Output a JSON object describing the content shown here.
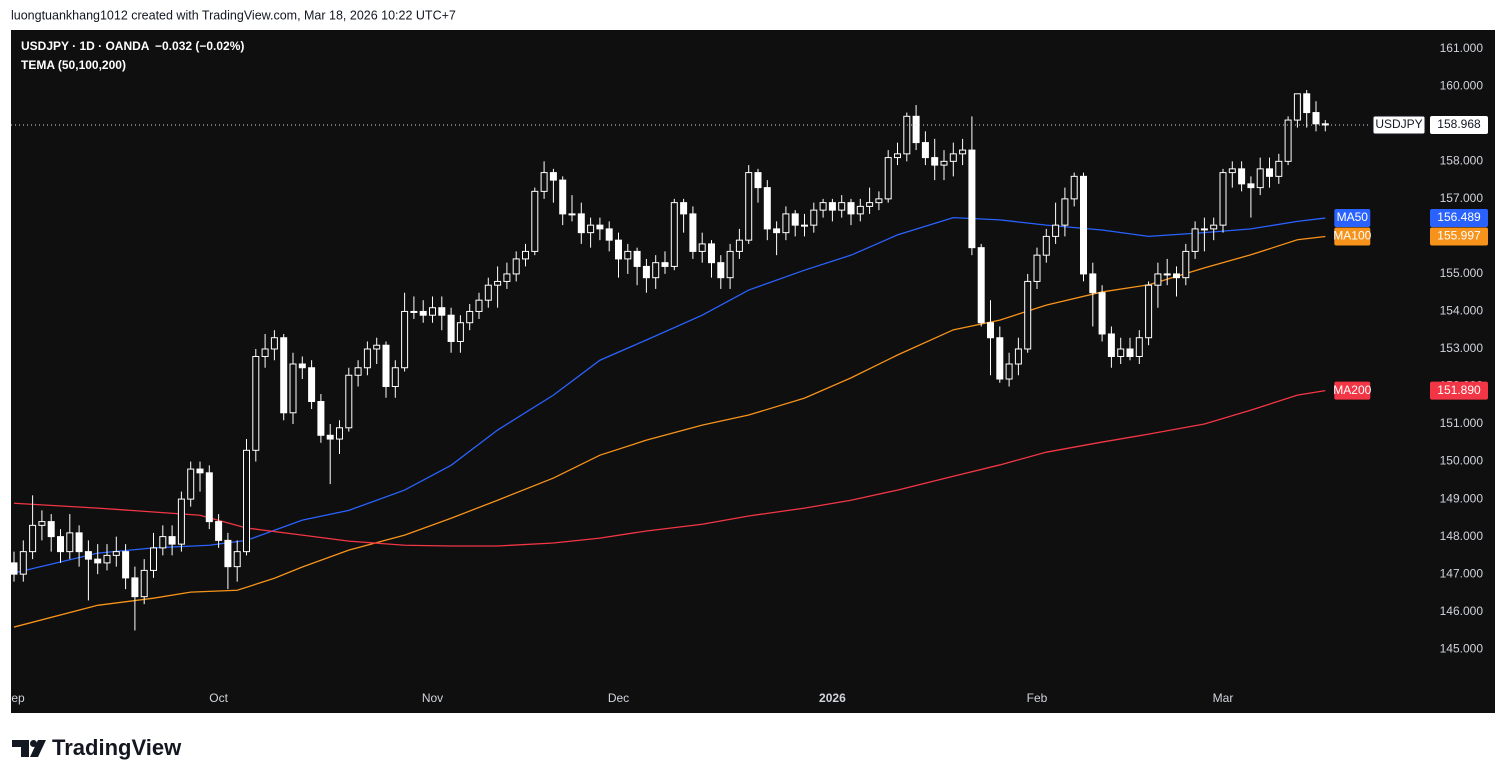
{
  "header": {
    "credit": "luongtuankhang1012 created with TradingView.com, Mar 18, 2026 10:22 UTC+7"
  },
  "footer": {
    "brand": "TradingView"
  },
  "chart_data": {
    "type": "candlestick",
    "legend": {
      "symbol": "USDJPY · 1D · OANDA",
      "change": "−0.032 (−0.02%)",
      "indicator": "TEMA (50,100,200)"
    },
    "symbol": "USDJPY",
    "last_price": 158.968,
    "ylim": [
      143.3,
      161.5
    ],
    "yticks": [
      {
        "value": 145,
        "label": "145.000"
      },
      {
        "value": 146,
        "label": "146.000"
      },
      {
        "value": 147,
        "label": "147.000"
      },
      {
        "value": 148,
        "label": "148.000"
      },
      {
        "value": 149,
        "label": "149.000"
      },
      {
        "value": 150,
        "label": "150.000"
      },
      {
        "value": 151,
        "label": "151.000"
      },
      {
        "value": 152,
        "label": "152.000"
      },
      {
        "value": 153,
        "label": "153.000"
      },
      {
        "value": 154,
        "label": "154.000"
      },
      {
        "value": 155,
        "label": "155.000"
      },
      {
        "value": 156,
        "label": "156.000"
      },
      {
        "value": 157,
        "label": "157.000"
      },
      {
        "value": 158,
        "label": "158.000"
      },
      {
        "value": 159,
        "label": "159.000"
      },
      {
        "value": 160,
        "label": "160.000"
      },
      {
        "value": 161,
        "label": "161.000"
      }
    ],
    "grid": false,
    "up_color": "#0f0f0f",
    "down_color": "#ffffff",
    "border_color": "#ffffff",
    "categories": [
      "Sep",
      null,
      null,
      null,
      null,
      null,
      null,
      null,
      null,
      null,
      null,
      null,
      null,
      null,
      null,
      null,
      null,
      null,
      null,
      null,
      null,
      null,
      "Oct",
      null,
      null,
      null,
      null,
      null,
      null,
      null,
      null,
      null,
      null,
      null,
      null,
      null,
      null,
      null,
      null,
      null,
      null,
      null,
      null,
      null,
      null,
      "Nov",
      null,
      null,
      null,
      null,
      null,
      null,
      null,
      null,
      null,
      null,
      null,
      null,
      null,
      null,
      null,
      null,
      null,
      null,
      null,
      "Dec",
      null,
      null,
      null,
      null,
      null,
      null,
      null,
      null,
      null,
      null,
      null,
      null,
      null,
      null,
      null,
      null,
      null,
      null,
      null,
      null,
      null,
      null,
      "2026",
      null,
      null,
      null,
      null,
      null,
      null,
      null,
      null,
      null,
      null,
      null,
      null,
      null,
      null,
      null,
      null,
      null,
      null,
      null,
      null,
      null,
      "Feb",
      null,
      null,
      null,
      null,
      null,
      null,
      null,
      null,
      null,
      null,
      null,
      null,
      null,
      null,
      null,
      null,
      null,
      null,
      null,
      "Mar",
      null,
      null,
      null,
      null,
      null,
      null,
      null,
      null,
      null,
      null,
      null
    ],
    "ohlc": [
      [
        147.3,
        147.6,
        146.8,
        147.0
      ],
      [
        147.0,
        147.9,
        146.8,
        147.6
      ],
      [
        147.6,
        149.1,
        147.4,
        148.3
      ],
      [
        148.3,
        148.7,
        147.9,
        148.4
      ],
      [
        148.4,
        148.6,
        147.6,
        148.0
      ],
      [
        148.0,
        148.2,
        147.3,
        147.6
      ],
      [
        147.6,
        148.6,
        147.4,
        148.1
      ],
      [
        148.1,
        148.3,
        147.2,
        147.6
      ],
      [
        147.6,
        147.9,
        146.3,
        147.4
      ],
      [
        147.4,
        147.8,
        147.0,
        147.3
      ],
      [
        147.3,
        147.8,
        147.1,
        147.5
      ],
      [
        147.5,
        148.0,
        147.2,
        147.6
      ],
      [
        147.6,
        147.8,
        146.6,
        146.9
      ],
      [
        146.9,
        147.2,
        145.5,
        146.4
      ],
      [
        146.4,
        147.4,
        146.2,
        147.1
      ],
      [
        147.1,
        148.1,
        146.9,
        147.7
      ],
      [
        147.7,
        148.3,
        147.5,
        148.0
      ],
      [
        148.0,
        148.3,
        147.5,
        147.8
      ],
      [
        147.8,
        149.2,
        147.6,
        149.0
      ],
      [
        149.0,
        150.0,
        148.8,
        149.8
      ],
      [
        149.8,
        150.0,
        149.2,
        149.7
      ],
      [
        149.7,
        149.9,
        148.2,
        148.4
      ],
      [
        148.4,
        148.6,
        147.7,
        147.9
      ],
      [
        147.9,
        148.1,
        146.6,
        147.2
      ],
      [
        147.2,
        147.9,
        146.8,
        147.6
      ],
      [
        147.6,
        150.6,
        147.5,
        150.3
      ],
      [
        150.3,
        153.0,
        150.0,
        152.8
      ],
      [
        152.8,
        153.4,
        152.5,
        153.0
      ],
      [
        153.0,
        153.5,
        152.7,
        153.3
      ],
      [
        153.3,
        153.4,
        151.1,
        151.3
      ],
      [
        151.3,
        152.9,
        151.0,
        152.6
      ],
      [
        152.6,
        152.8,
        152.2,
        152.5
      ],
      [
        152.5,
        152.7,
        151.4,
        151.6
      ],
      [
        151.6,
        151.8,
        150.5,
        150.7
      ],
      [
        150.7,
        151.0,
        149.4,
        150.6
      ],
      [
        150.6,
        151.1,
        150.2,
        150.9
      ],
      [
        150.9,
        152.5,
        150.8,
        152.3
      ],
      [
        152.3,
        152.7,
        152.0,
        152.5
      ],
      [
        152.5,
        153.2,
        152.3,
        153.0
      ],
      [
        153.0,
        153.3,
        152.6,
        153.1
      ],
      [
        153.1,
        153.2,
        151.7,
        152.0
      ],
      [
        152.0,
        152.7,
        151.7,
        152.5
      ],
      [
        152.5,
        154.5,
        152.4,
        154.0
      ],
      [
        154.0,
        154.4,
        153.8,
        154.0
      ],
      [
        154.0,
        154.3,
        153.7,
        153.9
      ],
      [
        153.9,
        154.4,
        153.7,
        154.1
      ],
      [
        154.1,
        154.4,
        153.5,
        153.9
      ],
      [
        153.9,
        154.1,
        152.9,
        153.2
      ],
      [
        153.2,
        153.9,
        152.9,
        153.7
      ],
      [
        153.7,
        154.2,
        153.5,
        154.0
      ],
      [
        154.0,
        154.5,
        153.8,
        154.3
      ],
      [
        154.3,
        154.9,
        154.1,
        154.7
      ],
      [
        154.7,
        155.2,
        154.1,
        154.8
      ],
      [
        154.8,
        155.3,
        154.6,
        155.0
      ],
      [
        155.0,
        155.6,
        154.8,
        155.4
      ],
      [
        155.4,
        155.8,
        155.2,
        155.6
      ],
      [
        155.6,
        157.3,
        155.5,
        157.2
      ],
      [
        157.2,
        158.0,
        157.0,
        157.7
      ],
      [
        157.7,
        157.8,
        156.9,
        157.5
      ],
      [
        157.5,
        157.6,
        156.3,
        156.6
      ],
      [
        156.6,
        157.1,
        156.4,
        156.6
      ],
      [
        156.6,
        156.9,
        155.8,
        156.1
      ],
      [
        156.1,
        156.5,
        155.7,
        156.3
      ],
      [
        156.3,
        156.5,
        155.9,
        156.2
      ],
      [
        156.2,
        156.4,
        155.6,
        155.9
      ],
      [
        155.9,
        156.1,
        154.9,
        155.4
      ],
      [
        155.4,
        155.8,
        155.0,
        155.6
      ],
      [
        155.6,
        155.7,
        154.7,
        155.2
      ],
      [
        155.2,
        155.4,
        154.5,
        154.9
      ],
      [
        154.9,
        155.5,
        154.6,
        155.3
      ],
      [
        155.3,
        155.6,
        155.0,
        155.2
      ],
      [
        155.2,
        157.0,
        155.1,
        156.9
      ],
      [
        156.9,
        157.0,
        156.1,
        156.6
      ],
      [
        156.6,
        156.8,
        155.4,
        155.6
      ],
      [
        155.6,
        156.1,
        155.3,
        155.8
      ],
      [
        155.8,
        155.9,
        154.9,
        155.3
      ],
      [
        155.3,
        155.5,
        154.6,
        154.9
      ],
      [
        154.9,
        155.8,
        154.6,
        155.6
      ],
      [
        155.6,
        156.2,
        155.4,
        155.9
      ],
      [
        155.9,
        157.9,
        155.8,
        157.7
      ],
      [
        157.7,
        157.8,
        156.9,
        157.3
      ],
      [
        157.3,
        157.5,
        155.9,
        156.2
      ],
      [
        156.2,
        156.4,
        155.5,
        156.1
      ],
      [
        156.1,
        156.8,
        155.9,
        156.6
      ],
      [
        156.6,
        156.7,
        156.0,
        156.3
      ],
      [
        156.3,
        156.6,
        156.0,
        156.3
      ],
      [
        156.3,
        156.9,
        156.1,
        156.7
      ],
      [
        156.7,
        157.0,
        156.5,
        156.9
      ],
      [
        156.9,
        157.0,
        156.4,
        156.7
      ],
      [
        156.7,
        157.1,
        156.5,
        156.9
      ],
      [
        156.9,
        157.0,
        156.3,
        156.6
      ],
      [
        156.6,
        157.0,
        156.4,
        156.8
      ],
      [
        156.8,
        157.3,
        156.6,
        156.9
      ],
      [
        156.9,
        157.2,
        156.7,
        157.0
      ],
      [
        157.0,
        158.3,
        156.9,
        158.1
      ],
      [
        158.1,
        158.5,
        157.9,
        158.2
      ],
      [
        158.2,
        159.3,
        158.0,
        159.2
      ],
      [
        159.2,
        159.5,
        158.3,
        158.5
      ],
      [
        158.5,
        158.8,
        157.9,
        158.1
      ],
      [
        158.1,
        158.6,
        157.5,
        157.9
      ],
      [
        157.9,
        158.3,
        157.5,
        158.0
      ],
      [
        158.0,
        158.5,
        157.6,
        158.2
      ],
      [
        158.2,
        158.6,
        157.9,
        158.3
      ],
      [
        158.3,
        159.2,
        155.5,
        155.7
      ],
      [
        155.7,
        155.8,
        153.6,
        153.7
      ],
      [
        153.7,
        154.3,
        152.3,
        153.3
      ],
      [
        153.3,
        153.6,
        152.1,
        152.2
      ],
      [
        152.2,
        152.9,
        152.0,
        152.6
      ],
      [
        152.6,
        153.3,
        152.3,
        153.0
      ],
      [
        153.0,
        155.0,
        152.9,
        154.8
      ],
      [
        154.8,
        155.7,
        154.6,
        155.5
      ],
      [
        155.5,
        156.2,
        155.3,
        156.0
      ],
      [
        156.0,
        156.9,
        155.8,
        156.3
      ],
      [
        156.3,
        157.3,
        156.0,
        157.0
      ],
      [
        157.0,
        157.7,
        156.8,
        157.6
      ],
      [
        157.6,
        157.7,
        154.8,
        155.0
      ],
      [
        155.0,
        155.3,
        153.6,
        154.5
      ],
      [
        154.5,
        154.7,
        153.2,
        153.4
      ],
      [
        153.4,
        153.6,
        152.5,
        152.8
      ],
      [
        152.8,
        153.3,
        152.6,
        153.0
      ],
      [
        153.0,
        153.3,
        152.7,
        152.8
      ],
      [
        152.8,
        153.5,
        152.6,
        153.3
      ],
      [
        153.3,
        154.8,
        153.1,
        154.7
      ],
      [
        154.7,
        155.3,
        154.1,
        155.0
      ],
      [
        155.0,
        155.4,
        154.7,
        155.0
      ],
      [
        155.0,
        155.2,
        154.4,
        154.9
      ],
      [
        154.9,
        155.8,
        154.7,
        155.6
      ],
      [
        155.6,
        156.4,
        155.4,
        156.2
      ],
      [
        156.2,
        156.5,
        155.6,
        156.2
      ],
      [
        156.2,
        156.5,
        155.9,
        156.3
      ],
      [
        156.3,
        157.8,
        156.1,
        157.7
      ],
      [
        157.7,
        158.0,
        157.3,
        157.8
      ],
      [
        157.8,
        158.0,
        157.2,
        157.4
      ],
      [
        157.4,
        157.6,
        156.5,
        157.3
      ],
      [
        157.3,
        158.1,
        157.1,
        157.8
      ],
      [
        157.8,
        158.1,
        157.3,
        157.6
      ],
      [
        157.6,
        158.2,
        157.4,
        158.0
      ],
      [
        158.0,
        159.2,
        157.9,
        159.1
      ],
      [
        159.1,
        159.8,
        158.9,
        159.8
      ],
      [
        159.8,
        159.9,
        158.9,
        159.3
      ],
      [
        159.3,
        159.6,
        158.8,
        159.0
      ],
      [
        159.0,
        159.1,
        158.8,
        158.968
      ]
    ],
    "series": [
      {
        "name": "MA50",
        "color": "#2962ff",
        "x": [
          0,
          9,
          15,
          21,
          25,
          31,
          36,
          42,
          47,
          52,
          58,
          63,
          68,
          74,
          79,
          85,
          90,
          95,
          101,
          106,
          111,
          117,
          122,
          128,
          133,
          138,
          141
        ],
        "values": [
          147.03,
          147.56,
          147.7,
          147.77,
          147.9,
          148.44,
          148.7,
          149.24,
          149.9,
          150.84,
          151.77,
          152.7,
          153.24,
          153.9,
          154.57,
          155.1,
          155.5,
          156.04,
          156.5,
          156.44,
          156.3,
          156.17,
          156.0,
          156.1,
          156.2,
          156.4,
          156.489
        ]
      },
      {
        "name": "MA100",
        "color": "#f7931a",
        "x": [
          0,
          9,
          15,
          19,
          24,
          28,
          31,
          36,
          42,
          47,
          52,
          58,
          63,
          68,
          74,
          79,
          85,
          90,
          95,
          101,
          106,
          111,
          117,
          122,
          128,
          133,
          138,
          141
        ],
        "values": [
          145.59,
          146.17,
          146.36,
          146.52,
          146.57,
          146.89,
          147.19,
          147.64,
          148.04,
          148.49,
          148.97,
          149.56,
          150.17,
          150.57,
          150.97,
          151.24,
          151.69,
          152.23,
          152.84,
          153.51,
          153.77,
          154.17,
          154.52,
          154.71,
          155.16,
          155.51,
          155.91,
          155.997
        ]
      },
      {
        "name": "MA200",
        "color": "#f23645",
        "x": [
          0,
          9,
          20,
          25,
          31,
          36,
          42,
          47,
          52,
          58,
          63,
          68,
          74,
          79,
          85,
          90,
          95,
          101,
          106,
          111,
          117,
          122,
          128,
          133,
          138,
          141
        ],
        "values": [
          148.89,
          148.76,
          148.57,
          148.23,
          148.04,
          147.88,
          147.77,
          147.75,
          147.75,
          147.83,
          147.96,
          148.15,
          148.33,
          148.55,
          148.76,
          148.97,
          149.24,
          149.61,
          149.91,
          150.25,
          150.52,
          150.73,
          151.0,
          151.37,
          151.77,
          151.89
        ],
        "value_labels": [
          null,
          null,
          null,
          null,
          null,
          null,
          null,
          null,
          null,
          null,
          null,
          null,
          null,
          null,
          null,
          null,
          null,
          null,
          null,
          null,
          null,
          null,
          null,
          null,
          null,
          "151.890"
        ]
      }
    ]
  }
}
